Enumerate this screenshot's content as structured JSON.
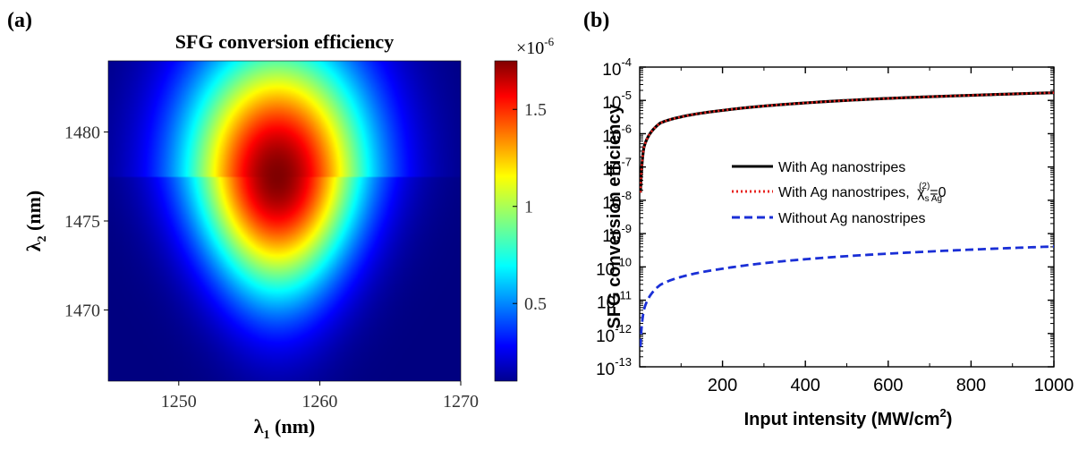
{
  "chart_data": [
    {
      "panel_label": "(a)",
      "type": "heatmap",
      "title": "SFG conversion efficiency",
      "xlabel": {
        "symbol": "λ",
        "sub": "1",
        "unit": " (nm)"
      },
      "ylabel": {
        "symbol": "λ",
        "sub": "2",
        "unit": " (nm)"
      },
      "xlim": [
        1245,
        1270
      ],
      "ylim": [
        1466,
        1484
      ],
      "xticks": [
        1250,
        1260,
        1270
      ],
      "yticks": [
        1470,
        1475,
        1480
      ],
      "colorbar": {
        "multiplier": {
          "base": "×10",
          "exp": "-6"
        },
        "range": [
          0.1,
          1.75
        ],
        "ticks": [
          0.5,
          1,
          1.5
        ],
        "tick_labels": [
          "0.5",
          "1",
          "1.5"
        ],
        "colormap": "jet"
      },
      "peak": {
        "x": 1257,
        "y": 1477.5,
        "value": 1.75
      },
      "grid": false
    },
    {
      "panel_label": "(b)",
      "type": "line",
      "xlabel": {
        "text": "Input intensity (MW/cm",
        "sup": "2",
        "end": ")"
      },
      "ylabel": "SFG conversion efficiency",
      "xlim": [
        0,
        1000
      ],
      "xticks": [
        200,
        400,
        600,
        800,
        1000
      ],
      "ylim_log10": [
        -13,
        -4
      ],
      "yscale": "log",
      "yticks": [
        {
          "base": "10",
          "exp": "-4"
        },
        {
          "base": "10",
          "exp": "-5"
        },
        {
          "base": "10",
          "exp": "-6"
        },
        {
          "base": "10",
          "exp": "-7"
        },
        {
          "base": "10",
          "exp": "-8"
        },
        {
          "base": "10",
          "exp": "-9"
        },
        {
          "base": "10",
          "exp": "-10"
        },
        {
          "base": "10",
          "exp": "-11"
        },
        {
          "base": "10",
          "exp": "-12"
        },
        {
          "base": "10",
          "exp": "-13"
        }
      ],
      "grid": false,
      "legend_position": "center-left",
      "series": [
        {
          "name": "With Ag nanostripes",
          "style": "solid",
          "color": "#000000",
          "x": [
            2,
            10,
            50,
            100,
            200,
            400,
            600,
            800,
            1000
          ],
          "y": [
            1.7e-08,
            3.8e-07,
            2.1e-06,
            3.2e-06,
            5e-06,
            8.4e-06,
            1.15e-05,
            1.42e-05,
            1.7e-05
          ]
        },
        {
          "name": "With Ag nanostripes, ",
          "name_math": {
            "sym": "χ",
            "sub": "s Ag",
            "sup": "(2)",
            "tail": "=0"
          },
          "style": "dotted",
          "color": "#e8231f",
          "x": [
            2,
            10,
            50,
            100,
            200,
            400,
            600,
            800,
            1000
          ],
          "y": [
            1.7e-08,
            3.8e-07,
            2.1e-06,
            3.2e-06,
            5e-06,
            8.4e-06,
            1.15e-05,
            1.42e-05,
            1.7e-05
          ]
        },
        {
          "name": "Without Ag nanostripes",
          "style": "dashed",
          "color": "#1a2fd6",
          "x": [
            2,
            10,
            50,
            100,
            200,
            400,
            600,
            800,
            1000
          ],
          "y": [
            4e-13,
            5e-12,
            2.9e-11,
            5e-11,
            8.8e-11,
            1.7e-10,
            2.5e-10,
            3.3e-10,
            4.1e-10
          ]
        }
      ]
    }
  ]
}
